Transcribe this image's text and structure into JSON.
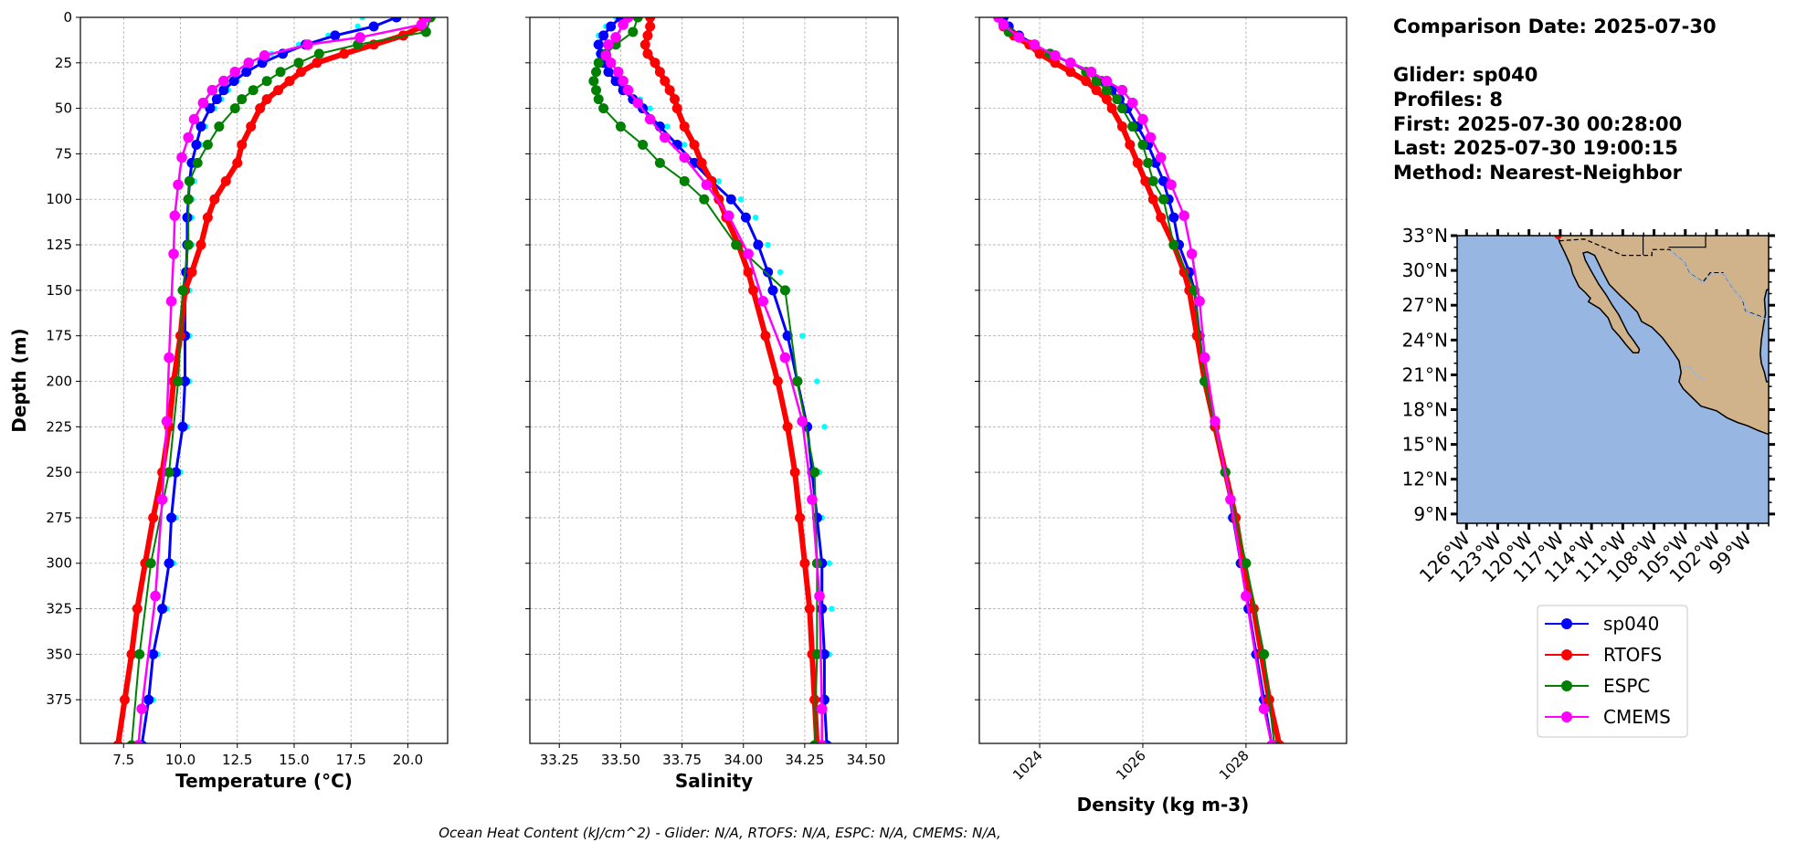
{
  "info": {
    "comparison_date": "Comparison Date: 2025-07-30",
    "glider": "Glider: sp040",
    "profiles": "Profiles: 8",
    "first": "First: 2025-07-30 00:28:00",
    "last": "Last: 2025-07-30 19:00:15",
    "method": "Method: Nearest-Neighbor"
  },
  "footer": "Ocean Heat Content (kJ/cm^2) - Glider: N/A,  RTOFS: N/A,  ESPC: N/A,  CMEMS: N/A,",
  "colors": {
    "sp040": "#0000ff",
    "RTOFS": "#ff0000",
    "ESPC": "#008000",
    "CMEMS": "#ff00ff",
    "glider_profiles": "#00ffff",
    "ocean": "#97b6e1",
    "land": "#d0b38b"
  },
  "legend": [
    "sp040",
    "RTOFS",
    "ESPC",
    "CMEMS"
  ],
  "chart_data": [
    {
      "type": "line",
      "panel": "temperature",
      "xlabel": "Temperature (°C)",
      "ylabel": "Depth (m)",
      "xlim": [
        5.6,
        21.75
      ],
      "ylim": [
        399,
        0
      ],
      "xticks": [
        "7.5",
        "10.0",
        "12.5",
        "15.0",
        "17.5",
        "20.0"
      ],
      "yticks": [
        "0",
        "25",
        "50",
        "75",
        "100",
        "125",
        "150",
        "175",
        "200",
        "225",
        "250",
        "275",
        "300",
        "325",
        "350",
        "375"
      ],
      "grid": true,
      "series": [
        {
          "key": "glider_profiles",
          "depth": [
            0,
            5,
            10,
            15,
            20,
            25,
            30,
            35,
            40,
            45,
            50,
            60,
            70,
            80,
            90,
            100,
            110,
            125,
            140,
            150,
            175,
            200,
            225,
            250,
            275,
            300,
            325,
            350,
            375,
            400
          ],
          "values": [
            18.0,
            17.8,
            16.5,
            15.2,
            14.0,
            13.5,
            12.9,
            12.5,
            12.1,
            11.8,
            11.5,
            11.1,
            10.9,
            10.7,
            10.6,
            10.5,
            10.5,
            10.5,
            10.45,
            10.4,
            10.4,
            10.4,
            10.3,
            10.0,
            9.8,
            9.7,
            9.4,
            9.0,
            8.8,
            8.5
          ]
        },
        {
          "key": "sp040",
          "name": "sp040",
          "depth": [
            0,
            5,
            10,
            15,
            20,
            25,
            30,
            35,
            40,
            45,
            50,
            60,
            70,
            80,
            90,
            100,
            110,
            125,
            140,
            150,
            175,
            200,
            225,
            250,
            275,
            300,
            325,
            350,
            375,
            400
          ],
          "values": [
            19.5,
            18.5,
            16.8,
            15.5,
            14.5,
            13.6,
            12.9,
            12.35,
            11.9,
            11.6,
            11.3,
            10.9,
            10.7,
            10.5,
            10.4,
            10.35,
            10.3,
            10.3,
            10.25,
            10.2,
            10.2,
            10.2,
            10.1,
            9.8,
            9.6,
            9.5,
            9.2,
            8.8,
            8.6,
            8.3
          ]
        },
        {
          "key": "RTOFS",
          "name": "RTOFS",
          "depth": [
            0,
            5,
            10,
            15,
            20,
            25,
            30,
            35,
            40,
            45,
            50,
            60,
            70,
            80,
            90,
            100,
            110,
            125,
            140,
            150,
            175,
            200,
            225,
            250,
            275,
            300,
            325,
            350,
            375,
            400
          ],
          "values": [
            20.7,
            20.6,
            19.8,
            18.5,
            17.2,
            16.0,
            15.3,
            14.8,
            14.3,
            13.8,
            13.5,
            13.1,
            12.7,
            12.5,
            12.0,
            11.5,
            11.2,
            10.9,
            10.5,
            10.2,
            10.0,
            9.7,
            9.5,
            9.2,
            8.8,
            8.45,
            8.1,
            7.85,
            7.55,
            7.25
          ]
        },
        {
          "key": "ESPC",
          "name": "ESPC",
          "depth": [
            0,
            8,
            15,
            20,
            25,
            30,
            35,
            40,
            45,
            50,
            60,
            70,
            80,
            90,
            100,
            125,
            150,
            200,
            250,
            300,
            350,
            400
          ],
          "values": [
            21.0,
            20.8,
            17.8,
            16.1,
            15.2,
            14.4,
            13.8,
            13.2,
            12.7,
            12.4,
            11.7,
            11.2,
            10.75,
            10.4,
            10.35,
            10.35,
            10.1,
            9.9,
            9.5,
            8.7,
            8.2,
            7.85
          ]
        },
        {
          "key": "CMEMS",
          "name": "CMEMS",
          "depth": [
            0,
            4,
            11,
            15,
            21,
            25,
            30,
            35,
            40,
            47,
            56,
            66,
            77,
            92,
            109,
            130,
            156,
            187,
            222,
            265,
            318,
            380,
            400
          ],
          "values": [
            20.8,
            20.6,
            17.9,
            15.6,
            13.7,
            13.0,
            12.4,
            11.9,
            11.4,
            11.0,
            10.6,
            10.35,
            10.06,
            9.9,
            9.75,
            9.7,
            9.6,
            9.5,
            9.4,
            9.2,
            8.9,
            8.3,
            8.15
          ]
        }
      ]
    },
    {
      "type": "line",
      "panel": "salinity",
      "xlabel": "Salinity",
      "xlim": [
        33.13,
        34.63
      ],
      "ylim": [
        399,
        0
      ],
      "xticks": [
        "33.25",
        "33.50",
        "33.75",
        "34.00",
        "34.25",
        "34.50"
      ],
      "grid": true,
      "series": [
        {
          "key": "glider_profiles",
          "depth": [
            0,
            5,
            10,
            15,
            20,
            25,
            30,
            35,
            40,
            45,
            50,
            60,
            70,
            80,
            90,
            100,
            110,
            125,
            140,
            150,
            175,
            200,
            225,
            250,
            275,
            300,
            325,
            350,
            375,
            400
          ],
          "values": [
            33.48,
            33.44,
            33.41,
            33.4,
            33.41,
            33.43,
            33.46,
            33.5,
            33.54,
            33.58,
            33.62,
            33.69,
            33.76,
            33.83,
            33.9,
            33.99,
            34.05,
            34.1,
            34.15,
            34.18,
            34.24,
            34.3,
            34.33,
            34.31,
            34.32,
            34.35,
            34.36,
            34.35,
            34.34,
            34.34
          ]
        },
        {
          "key": "sp040",
          "name": "sp040",
          "depth": [
            0,
            5,
            10,
            15,
            20,
            25,
            30,
            35,
            40,
            45,
            50,
            60,
            70,
            80,
            90,
            100,
            110,
            125,
            140,
            150,
            175,
            200,
            225,
            250,
            275,
            300,
            325,
            350,
            375,
            400
          ],
          "values": [
            33.5,
            33.46,
            33.43,
            33.41,
            33.42,
            33.43,
            33.45,
            33.48,
            33.51,
            33.55,
            33.59,
            33.66,
            33.73,
            33.8,
            33.87,
            33.95,
            34.01,
            34.06,
            34.1,
            34.12,
            34.18,
            34.22,
            34.26,
            34.28,
            34.3,
            34.32,
            34.32,
            34.33,
            34.33,
            34.34
          ]
        },
        {
          "key": "RTOFS",
          "name": "RTOFS",
          "depth": [
            0,
            5,
            10,
            15,
            20,
            25,
            30,
            35,
            40,
            45,
            50,
            60,
            70,
            80,
            90,
            100,
            110,
            125,
            140,
            150,
            175,
            200,
            225,
            250,
            275,
            300,
            325,
            350,
            375,
            400
          ],
          "values": [
            33.62,
            33.62,
            33.61,
            33.6,
            33.61,
            33.64,
            33.66,
            33.68,
            33.7,
            33.72,
            33.73,
            33.76,
            33.8,
            33.83,
            33.87,
            33.9,
            33.93,
            33.98,
            34.02,
            34.04,
            34.09,
            34.14,
            34.18,
            34.21,
            34.23,
            34.25,
            34.27,
            34.28,
            34.29,
            34.3
          ]
        },
        {
          "key": "ESPC",
          "name": "ESPC",
          "depth": [
            0,
            8,
            15,
            20,
            25,
            30,
            35,
            40,
            45,
            50,
            60,
            70,
            80,
            90,
            100,
            125,
            150,
            200,
            250,
            300,
            350,
            400
          ],
          "values": [
            33.57,
            33.55,
            33.48,
            33.44,
            33.41,
            33.4,
            33.39,
            33.4,
            33.41,
            33.43,
            33.5,
            33.59,
            33.66,
            33.76,
            33.84,
            33.97,
            34.17,
            34.22,
            34.29,
            34.3,
            34.3,
            34.29
          ]
        },
        {
          "key": "CMEMS",
          "name": "CMEMS",
          "depth": [
            0,
            4,
            11,
            15,
            21,
            25,
            30,
            35,
            40,
            47,
            56,
            66,
            77,
            92,
            109,
            130,
            156,
            187,
            222,
            265,
            318,
            380,
            400
          ],
          "values": [
            33.53,
            33.51,
            33.48,
            33.45,
            33.44,
            33.46,
            33.49,
            33.51,
            33.53,
            33.57,
            33.62,
            33.68,
            33.76,
            33.85,
            33.94,
            34.02,
            34.08,
            34.17,
            34.24,
            34.28,
            34.31,
            34.32,
            34.32
          ]
        }
      ]
    },
    {
      "type": "line",
      "panel": "density",
      "xlabel": "Density (kg m-3)",
      "xlim": [
        1022.83,
        1029.95
      ],
      "ylim": [
        399,
        0
      ],
      "xticks": [
        "1024",
        "1026",
        "1028"
      ],
      "grid": true,
      "series": [
        {
          "key": "glider_profiles",
          "depth": [
            0,
            5,
            10,
            15,
            20,
            25,
            30,
            35,
            40,
            45,
            50,
            60,
            70,
            80,
            90,
            100,
            110,
            125,
            140,
            150,
            175,
            200,
            225,
            250,
            275,
            300,
            325,
            350,
            375,
            400
          ],
          "values": [
            1023.25,
            1023.35,
            1023.55,
            1023.85,
            1024.15,
            1024.55,
            1024.95,
            1025.15,
            1025.35,
            1025.5,
            1025.65,
            1025.85,
            1026.05,
            1026.2,
            1026.35,
            1026.45,
            1026.55,
            1026.65,
            1026.85,
            1026.95,
            1027.05,
            1027.15,
            1027.35,
            1027.55,
            1027.7,
            1027.85,
            1028.0,
            1028.15,
            1028.3,
            1028.45
          ]
        },
        {
          "key": "sp040",
          "name": "sp040",
          "depth": [
            0,
            5,
            10,
            15,
            20,
            25,
            30,
            35,
            40,
            45,
            50,
            60,
            70,
            80,
            90,
            100,
            110,
            125,
            140,
            150,
            175,
            200,
            225,
            250,
            275,
            300,
            325,
            350,
            375,
            400
          ],
          "values": [
            1023.3,
            1023.4,
            1023.6,
            1023.9,
            1024.2,
            1024.6,
            1025.0,
            1025.2,
            1025.4,
            1025.55,
            1025.7,
            1025.9,
            1026.1,
            1026.25,
            1026.4,
            1026.5,
            1026.6,
            1026.7,
            1026.9,
            1027.0,
            1027.1,
            1027.2,
            1027.4,
            1027.6,
            1027.75,
            1027.9,
            1028.05,
            1028.2,
            1028.35,
            1028.5
          ]
        },
        {
          "key": "RTOFS",
          "name": "RTOFS",
          "depth": [
            0,
            5,
            10,
            15,
            20,
            25,
            30,
            35,
            40,
            45,
            50,
            60,
            70,
            80,
            90,
            100,
            110,
            125,
            140,
            150,
            175,
            200,
            225,
            250,
            275,
            300,
            325,
            350,
            375,
            400
          ],
          "values": [
            1023.2,
            1023.3,
            1023.5,
            1023.8,
            1024.0,
            1024.3,
            1024.6,
            1024.9,
            1025.1,
            1025.3,
            1025.4,
            1025.6,
            1025.75,
            1025.9,
            1026.05,
            1026.2,
            1026.35,
            1026.6,
            1026.8,
            1026.9,
            1027.05,
            1027.2,
            1027.4,
            1027.6,
            1027.8,
            1027.95,
            1028.15,
            1028.3,
            1028.45,
            1028.65
          ]
        },
        {
          "key": "ESPC",
          "name": "ESPC",
          "depth": [
            0,
            8,
            15,
            20,
            25,
            30,
            35,
            40,
            45,
            50,
            60,
            70,
            80,
            90,
            100,
            125,
            150,
            200,
            250,
            300,
            350,
            400
          ],
          "values": [
            1023.2,
            1023.4,
            1023.9,
            1024.2,
            1024.6,
            1024.9,
            1025.1,
            1025.3,
            1025.5,
            1025.6,
            1025.8,
            1026.0,
            1026.1,
            1026.2,
            1026.4,
            1026.6,
            1027.0,
            1027.2,
            1027.6,
            1028.0,
            1028.35,
            1028.55
          ]
        },
        {
          "key": "CMEMS",
          "name": "CMEMS",
          "depth": [
            0,
            4,
            11,
            15,
            21,
            25,
            30,
            35,
            40,
            47,
            56,
            66,
            77,
            92,
            109,
            130,
            156,
            187,
            222,
            265,
            318,
            380,
            400
          ],
          "values": [
            1023.2,
            1023.3,
            1023.6,
            1023.9,
            1024.3,
            1024.6,
            1025.0,
            1025.3,
            1025.6,
            1025.8,
            1026.0,
            1026.15,
            1026.35,
            1026.55,
            1026.8,
            1026.95,
            1027.1,
            1027.2,
            1027.4,
            1027.7,
            1028.0,
            1028.35,
            1028.5
          ]
        }
      ]
    }
  ],
  "map": {
    "lon_range": [
      -126.9,
      -97.0
    ],
    "lat_range": [
      8.2,
      33.0
    ],
    "lat_ticks": [
      {
        "value": 33,
        "label": "33°N"
      },
      {
        "value": 30,
        "label": "30°N"
      },
      {
        "value": 27,
        "label": "27°N"
      },
      {
        "value": 24,
        "label": "24°N"
      },
      {
        "value": 21,
        "label": "21°N"
      },
      {
        "value": 18,
        "label": "18°N"
      },
      {
        "value": 15,
        "label": "15°N"
      },
      {
        "value": 12,
        "label": "12°N"
      },
      {
        "value": 9,
        "label": "9°N"
      }
    ],
    "lon_ticks": [
      {
        "value": -126,
        "label": "126°W"
      },
      {
        "value": -123,
        "label": "123°W"
      },
      {
        "value": -120,
        "label": "120°W"
      },
      {
        "value": -117,
        "label": "117°W"
      },
      {
        "value": -114,
        "label": "114°W"
      },
      {
        "value": -111,
        "label": "111°W"
      },
      {
        "value": -108,
        "label": "108°W"
      },
      {
        "value": -105,
        "label": "105°W"
      },
      {
        "value": -102,
        "label": "102°W"
      },
      {
        "value": -99,
        "label": "99°W"
      }
    ],
    "glider_location": {
      "lon": -117.2,
      "lat": 33.0
    }
  }
}
